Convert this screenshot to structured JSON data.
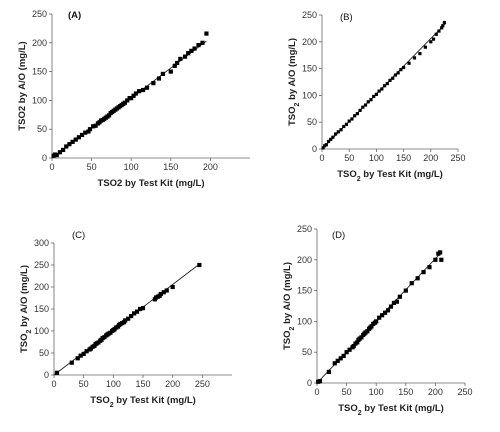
{
  "chart_data": [
    {
      "type": "scatter",
      "panel_label": "(A)",
      "xlabel": "TSO2 by Test Kit (mg/L)",
      "ylabel": "TSO2 by A/O (mg/L)",
      "xlim": [
        0,
        250
      ],
      "ylim": [
        0,
        250
      ],
      "xticks": [
        0,
        50,
        100,
        150,
        200
      ],
      "yticks": [
        0,
        50,
        100,
        150,
        200,
        250
      ],
      "fit_line": [
        [
          0,
          0
        ],
        [
          195,
          203
        ]
      ],
      "series": [
        {
          "x": [
            2,
            4,
            6,
            10,
            14,
            18,
            22,
            26,
            30,
            34,
            38,
            42,
            46,
            48,
            52,
            55,
            58,
            60,
            62,
            64,
            66,
            68,
            70,
            72,
            74,
            76,
            78,
            80,
            82,
            84,
            86,
            88,
            90,
            92,
            95,
            98,
            100,
            103,
            106,
            110,
            115,
            120,
            128,
            135,
            140,
            150,
            155,
            158,
            162,
            168,
            172,
            176,
            180,
            185,
            190,
            195
          ],
          "y": [
            4,
            6,
            5,
            10,
            14,
            20,
            24,
            28,
            32,
            36,
            40,
            44,
            46,
            50,
            55,
            56,
            60,
            62,
            65,
            66,
            68,
            70,
            72,
            74,
            78,
            80,
            82,
            84,
            86,
            88,
            90,
            92,
            94,
            96,
            100,
            104,
            104,
            108,
            112,
            116,
            118,
            122,
            130,
            138,
            146,
            150,
            160,
            165,
            172,
            176,
            182,
            186,
            190,
            196,
            200,
            216
          ]
        }
      ]
    },
    {
      "type": "scatter",
      "panel_label": "(B)",
      "xlabel": "TSO2 by Test Kit (mg/L)",
      "ylabel": "TSO2 by A/O (mg/L)",
      "xlim": [
        0,
        250
      ],
      "ylim": [
        0,
        250
      ],
      "xticks": [
        0,
        50,
        100,
        150,
        200,
        250
      ],
      "yticks": [
        0,
        50,
        100,
        150,
        200,
        250
      ],
      "fit_line": [
        [
          0,
          0
        ],
        [
          228,
          235
        ]
      ],
      "series": [
        {
          "x": [
            2,
            5,
            8,
            12,
            16,
            20,
            25,
            30,
            35,
            40,
            45,
            50,
            55,
            60,
            65,
            70,
            75,
            80,
            85,
            90,
            95,
            100,
            105,
            110,
            115,
            120,
            125,
            130,
            135,
            140,
            145,
            150,
            160,
            170,
            180,
            190,
            200,
            205,
            210,
            215,
            220,
            222,
            225
          ],
          "y": [
            2,
            6,
            8,
            14,
            18,
            22,
            28,
            32,
            36,
            42,
            46,
            52,
            56,
            62,
            66,
            72,
            78,
            82,
            88,
            92,
            98,
            102,
            108,
            112,
            118,
            122,
            128,
            132,
            138,
            142,
            148,
            152,
            160,
            170,
            178,
            190,
            200,
            205,
            214,
            220,
            226,
            230,
            236
          ]
        }
      ]
    },
    {
      "type": "scatter",
      "panel_label": "(C)",
      "xlabel": "TSO2 by Test Kit (mg/L)",
      "ylabel": "TSO2 by A/O (mg/L)",
      "xlim": [
        0,
        300
      ],
      "ylim": [
        0,
        300
      ],
      "xticks": [
        0,
        50,
        100,
        150,
        200,
        250
      ],
      "yticks": [
        0,
        50,
        100,
        150,
        200,
        250,
        300
      ],
      "fit_line": [
        [
          0,
          0
        ],
        [
          245,
          252
        ]
      ],
      "series": [
        {
          "x": [
            5,
            30,
            40,
            45,
            50,
            55,
            60,
            62,
            65,
            68,
            70,
            72,
            75,
            78,
            80,
            82,
            85,
            88,
            90,
            92,
            95,
            98,
            100,
            102,
            105,
            108,
            110,
            112,
            115,
            118,
            120,
            125,
            130,
            135,
            140,
            145,
            150,
            170,
            172,
            175,
            178,
            180,
            185,
            190,
            200,
            245
          ],
          "y": [
            5,
            28,
            38,
            44,
            48,
            54,
            58,
            60,
            64,
            66,
            70,
            72,
            74,
            78,
            80,
            84,
            86,
            90,
            92,
            94,
            96,
            100,
            102,
            104,
            108,
            110,
            114,
            116,
            118,
            120,
            124,
            128,
            134,
            140,
            144,
            150,
            152,
            172,
            176,
            178,
            180,
            184,
            188,
            192,
            200,
            250
          ]
        }
      ]
    },
    {
      "type": "scatter",
      "panel_label": "(D)",
      "xlabel": "TSO2 by Test Kit (mg/L)",
      "ylabel": "TSO2 by A/O (mg/L)",
      "xlim": [
        0,
        250
      ],
      "ylim": [
        0,
        250
      ],
      "xticks": [
        0,
        50,
        100,
        150,
        200,
        250
      ],
      "yticks": [
        0,
        50,
        100,
        150,
        200,
        250
      ],
      "fit_line": [
        [
          0,
          0
        ],
        [
          210,
          212
        ]
      ],
      "series": [
        {
          "x": [
            2,
            5,
            20,
            30,
            35,
            40,
            45,
            50,
            55,
            60,
            62,
            65,
            68,
            70,
            72,
            75,
            78,
            80,
            82,
            85,
            88,
            90,
            92,
            95,
            98,
            100,
            105,
            110,
            115,
            120,
            125,
            130,
            135,
            140,
            150,
            160,
            170,
            180,
            190,
            200,
            205,
            208,
            210
          ],
          "y": [
            2,
            3,
            18,
            32,
            36,
            40,
            44,
            50,
            54,
            58,
            60,
            64,
            66,
            70,
            72,
            74,
            78,
            80,
            82,
            84,
            88,
            90,
            92,
            96,
            98,
            100,
            106,
            110,
            114,
            118,
            124,
            130,
            132,
            140,
            150,
            162,
            170,
            180,
            188,
            200,
            210,
            212,
            200
          ]
        }
      ]
    }
  ]
}
